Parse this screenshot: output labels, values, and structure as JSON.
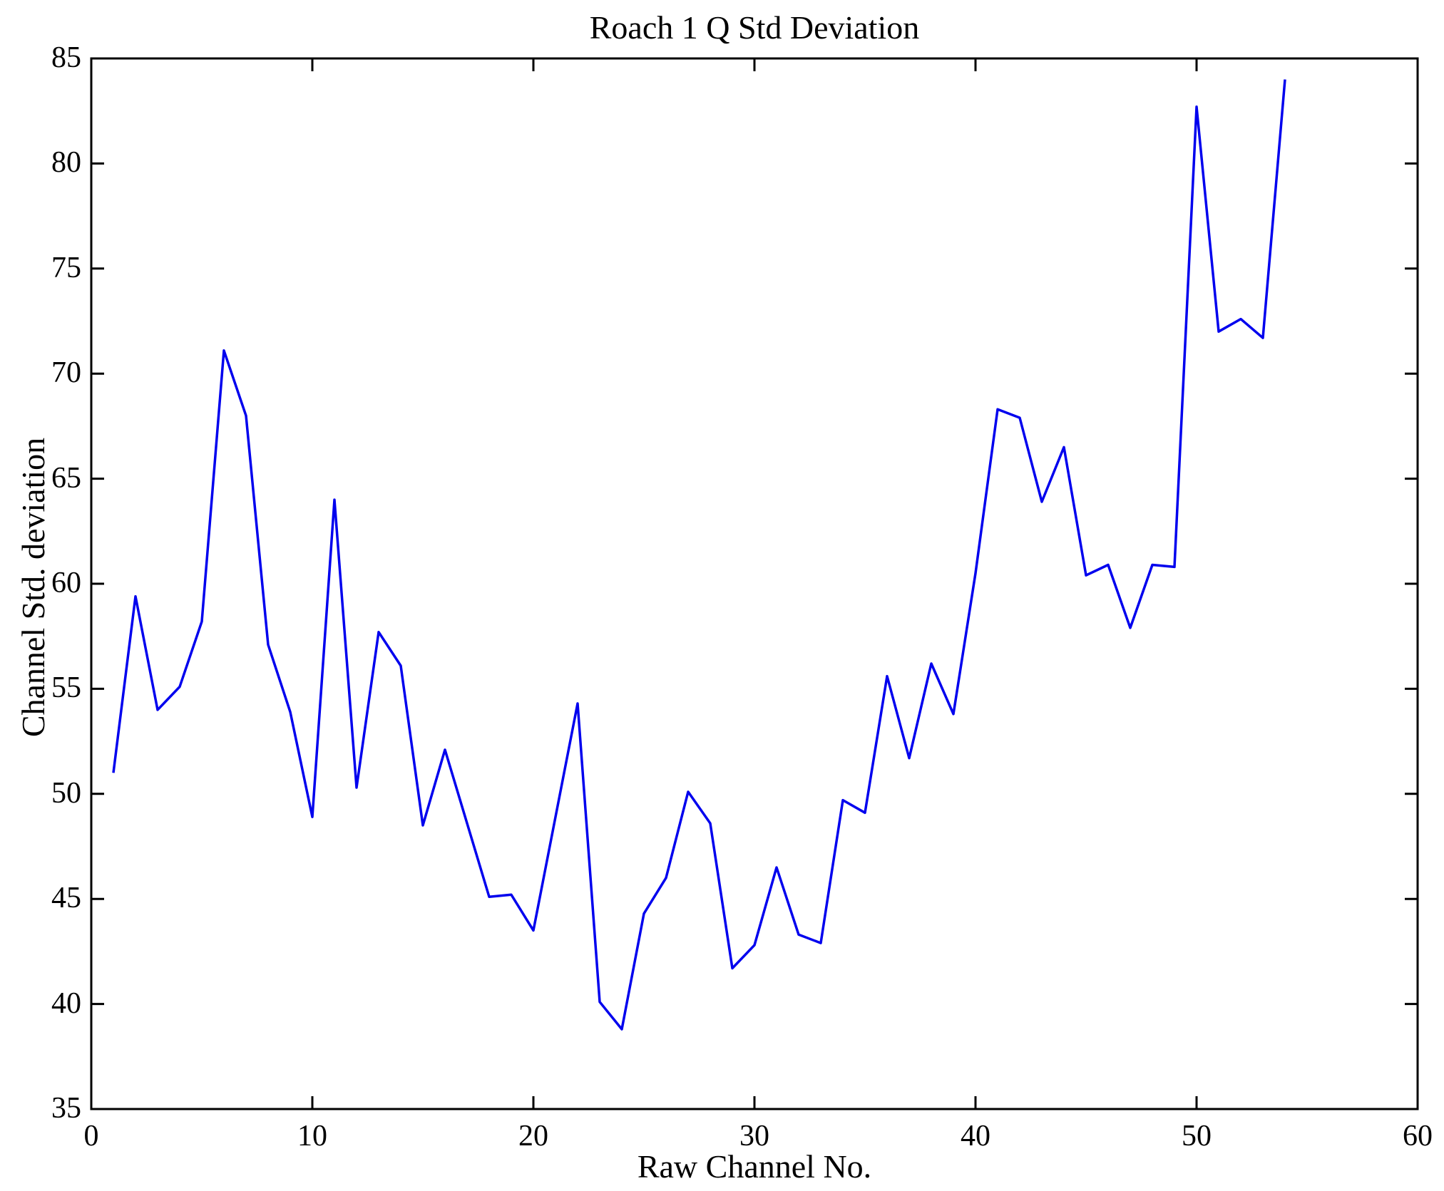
{
  "title": "Roach 1 Q Std Deviation",
  "chart_data": {
    "type": "line",
    "title": "Roach 1 Q Std Deviation",
    "xlabel": "Raw Channel No.",
    "ylabel": "Channel Std. deviation",
    "xlim": [
      0,
      60
    ],
    "ylim": [
      35,
      85
    ],
    "xticks": [
      0,
      10,
      20,
      30,
      40,
      50,
      60
    ],
    "yticks": [
      35,
      40,
      45,
      50,
      55,
      60,
      65,
      70,
      75,
      80,
      85
    ],
    "grid": false,
    "legend_position": "none",
    "line_color": "#0000EE",
    "frame_color": "#000000",
    "series": [
      {
        "name": "Channel Std. deviation",
        "x": [
          1,
          2,
          3,
          4,
          5,
          6,
          7,
          8,
          9,
          10,
          11,
          12,
          13,
          14,
          15,
          16,
          17,
          18,
          19,
          20,
          21,
          22,
          23,
          24,
          25,
          26,
          27,
          28,
          29,
          30,
          31,
          32,
          33,
          34,
          35,
          36,
          37,
          38,
          39,
          40,
          41,
          42,
          43,
          44,
          45,
          46,
          47,
          48,
          49,
          50,
          51,
          52,
          53,
          54
        ],
        "values": [
          51.0,
          59.4,
          54.0,
          55.1,
          58.2,
          71.1,
          68.0,
          57.1,
          53.9,
          48.9,
          64.0,
          50.3,
          57.7,
          56.1,
          48.5,
          52.1,
          48.6,
          45.1,
          45.2,
          43.5,
          48.9,
          54.3,
          40.1,
          38.8,
          44.3,
          46.0,
          50.1,
          48.6,
          41.7,
          42.8,
          46.5,
          43.3,
          42.9,
          49.7,
          49.1,
          55.6,
          51.7,
          56.2,
          53.8,
          60.5,
          68.3,
          67.9,
          63.9,
          66.5,
          60.4,
          60.9,
          57.9,
          60.9,
          60.8,
          82.7,
          72.0,
          72.6,
          71.7,
          84.0
        ]
      }
    ]
  }
}
